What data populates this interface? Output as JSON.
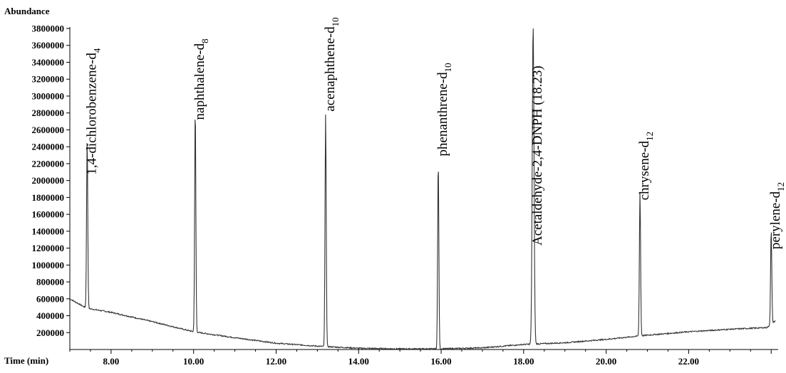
{
  "chart_data": {
    "type": "line",
    "ylabel": "Abundance",
    "xlabel": "Time (min)",
    "xlim": [
      7.0,
      24.1
    ],
    "ylim": [
      0,
      3800000
    ],
    "x_ticks": [
      "8.00",
      "10.00",
      "12.00",
      "14.00",
      "16.00",
      "18.00",
      "20.00",
      "22.00"
    ],
    "x_tick_values": [
      8,
      10,
      12,
      14,
      16,
      18,
      20,
      22
    ],
    "y_ticks": [
      "200000",
      "400000",
      "600000",
      "800000",
      "1000000",
      "1200000",
      "1400000",
      "1600000",
      "1800000",
      "2000000",
      "2200000",
      "2400000",
      "2600000",
      "2800000",
      "3000000",
      "3200000",
      "3400000",
      "3600000",
      "3800000"
    ],
    "y_tick_values": [
      200000,
      400000,
      600000,
      800000,
      1000000,
      1200000,
      1400000,
      1600000,
      1800000,
      2000000,
      2200000,
      2400000,
      2600000,
      2800000,
      3000000,
      3200000,
      3400000,
      3600000,
      3800000
    ],
    "baseline": [
      {
        "x": 7.0,
        "y": 600000
      },
      {
        "x": 7.4,
        "y": 490000
      },
      {
        "x": 8.0,
        "y": 440000
      },
      {
        "x": 9.0,
        "y": 330000
      },
      {
        "x": 10.0,
        "y": 210000
      },
      {
        "x": 11.0,
        "y": 140000
      },
      {
        "x": 12.0,
        "y": 75000
      },
      {
        "x": 13.0,
        "y": 40000
      },
      {
        "x": 14.0,
        "y": 15000
      },
      {
        "x": 15.0,
        "y": 8000
      },
      {
        "x": 16.0,
        "y": 8000
      },
      {
        "x": 17.0,
        "y": 20000
      },
      {
        "x": 18.0,
        "y": 60000
      },
      {
        "x": 19.0,
        "y": 80000
      },
      {
        "x": 20.0,
        "y": 120000
      },
      {
        "x": 21.0,
        "y": 170000
      },
      {
        "x": 22.0,
        "y": 210000
      },
      {
        "x": 23.0,
        "y": 240000
      },
      {
        "x": 23.9,
        "y": 260000
      },
      {
        "x": 24.1,
        "y": 340000
      }
    ],
    "peaks": [
      {
        "x": 7.42,
        "height": 2000000,
        "width": 0.03,
        "label": "1,4-dichlorobenzene-d",
        "sub": "4"
      },
      {
        "x": 10.04,
        "height": 2650000,
        "width": 0.03,
        "label": "naphthalene-d",
        "sub": "8"
      },
      {
        "x": 13.2,
        "height": 2750000,
        "width": 0.03,
        "label": "acenaphthene-d",
        "sub": "10"
      },
      {
        "x": 15.93,
        "height": 2220000,
        "width": 0.03,
        "label": "phenanthrene-d",
        "sub": "10"
      },
      {
        "x": 18.23,
        "height": 3800000,
        "width": 0.045,
        "label": "Acetaldehyde-2,4-DNPH (18.23)",
        "sub": ""
      },
      {
        "x": 20.82,
        "height": 1700000,
        "width": 0.03,
        "label": "chrysene-d",
        "sub": "12"
      },
      {
        "x": 24.0,
        "height": 1120000,
        "width": 0.03,
        "label": "perylene-d",
        "sub": "12"
      }
    ]
  }
}
